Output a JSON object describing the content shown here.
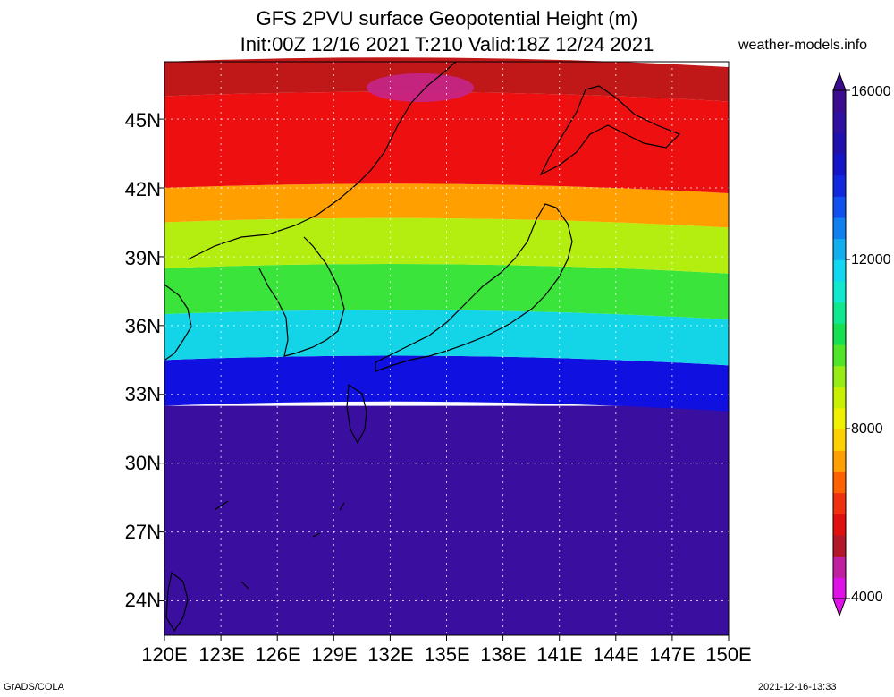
{
  "header": {
    "title_line1": "GFS 2PVU surface Geopotential Height (m)",
    "title_line2": "Init:00Z 12/16 2021 T:210 Valid:18Z 12/24 2021",
    "site": "weather-models.info"
  },
  "footer": {
    "left": "GrADS/COLA",
    "right": "2021-12-16-13:33"
  },
  "map": {
    "lat_labels": [
      "45N",
      "42N",
      "39N",
      "36N",
      "33N",
      "30N",
      "27N",
      "24N"
    ],
    "lon_labels": [
      "120E",
      "123E",
      "126E",
      "129E",
      "132E",
      "135E",
      "138E",
      "141E",
      "144E",
      "147E",
      "150E"
    ],
    "lon_range": [
      120,
      150
    ],
    "lat_range": [
      22.5,
      47.5
    ],
    "field_bands": [
      {
        "lat_from": 22.5,
        "lat_to": 32.5,
        "color": "#3a0fa0"
      },
      {
        "lat_from": 32.5,
        "lat_to": 34.5,
        "color": "#1010e0"
      },
      {
        "lat_from": 34.5,
        "lat_to": 36.5,
        "color": "#14d4e8"
      },
      {
        "lat_from": 36.5,
        "lat_to": 38.5,
        "color": "#3ae43a"
      },
      {
        "lat_from": 38.5,
        "lat_to": 40.5,
        "color": "#b4ee10"
      },
      {
        "lat_from": 40.5,
        "lat_to": 42.0,
        "color": "#ffa000"
      },
      {
        "lat_from": 42.0,
        "lat_to": 46.0,
        "color": "#ee1010"
      },
      {
        "lat_from": 46.0,
        "lat_to": 47.5,
        "color": "#c01818"
      }
    ]
  },
  "colorbar": {
    "labels": [
      "16000",
      "12000",
      "8000",
      "4000"
    ],
    "colors": [
      "#e010e8",
      "#c020a0",
      "#b41828",
      "#e01010",
      "#f03010",
      "#ff6000",
      "#ffa000",
      "#ffd000",
      "#f0f000",
      "#c8f000",
      "#96ec14",
      "#50e628",
      "#14e050",
      "#10e890",
      "#10e8d0",
      "#10d8f0",
      "#10b0f0",
      "#1080f0",
      "#1050f0",
      "#1028e0",
      "#1414c8",
      "#2010b0",
      "#3010a0",
      "#3c0c90"
    ]
  }
}
